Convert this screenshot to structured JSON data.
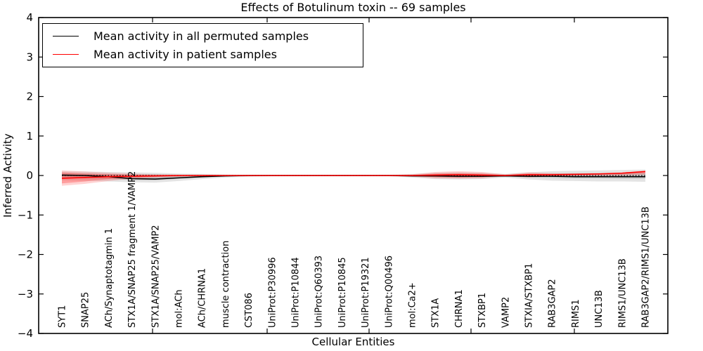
{
  "chart_data": {
    "type": "line",
    "title": "Effects of Botulinum toxin -- 69 samples",
    "xlabel": "Cellular Entities",
    "ylabel": "Inferred Activity",
    "ylim": [
      -4,
      4
    ],
    "ytick_values": [
      -4,
      -3,
      -2,
      -1,
      0,
      1,
      2,
      3,
      4
    ],
    "ytick_labels": [
      "−4",
      "−3",
      "−2",
      "−1",
      "0",
      "1",
      "2",
      "3",
      "4"
    ],
    "grid": false,
    "legend_position": "upper-left",
    "categories": [
      "SYT1",
      "SNAP25",
      "ACh/Synaptotagmin 1",
      "STX1A/SNAP25 fragment 1/VAMP2",
      "STX1A/SNAP25/VAMP2",
      "mol:ACh",
      "ACh/CHRNA1",
      "muscle contraction",
      "CST086",
      "UniProt:P30996",
      "UniProt:P10844",
      "UniProt:Q60393",
      "UniProt:P10845",
      "UniProt:P19321",
      "UniProt:Q00496",
      "mol:Ca2+",
      "STX1A",
      "CHRNA1",
      "STXBP1",
      "VAMP2",
      "STXIA/STXBP1",
      "RAB3GAP2",
      "RIMS1",
      "UNC13B",
      "RIMS1/UNC13B",
      "RAB3GAP2/RIMS1/UNC13B"
    ],
    "series": [
      {
        "name": "Mean activity in all permuted samples",
        "color": "#000000",
        "values": [
          0.01,
          0.0,
          -0.03,
          -0.08,
          -0.09,
          -0.06,
          -0.03,
          -0.01,
          0.0,
          0.0,
          0.0,
          0.0,
          0.0,
          0.0,
          0.0,
          -0.01,
          -0.01,
          -0.02,
          -0.02,
          -0.01,
          -0.02,
          -0.02,
          -0.03,
          -0.03,
          -0.03,
          -0.03
        ]
      },
      {
        "name": "Mean activity in patient samples",
        "color": "#ff0000",
        "values": [
          -0.07,
          -0.05,
          -0.03,
          -0.02,
          -0.01,
          0.0,
          0.0,
          0.0,
          0.0,
          0.0,
          0.0,
          0.0,
          0.0,
          0.0,
          0.0,
          0.0,
          0.01,
          0.02,
          0.01,
          0.0,
          0.02,
          0.02,
          0.03,
          0.04,
          0.06,
          0.1
        ]
      }
    ],
    "bands": [
      {
        "name": "permuted-spread-outer",
        "color": "rgba(130,130,130,0.22)",
        "upper": [
          0.1,
          0.1,
          0.09,
          0.08,
          0.07,
          0.05,
          0.04,
          0.03,
          0.02,
          0.02,
          0.02,
          0.02,
          0.02,
          0.02,
          0.02,
          0.04,
          0.07,
          0.08,
          0.07,
          0.04,
          0.08,
          0.11,
          0.12,
          0.13,
          0.14,
          0.15
        ],
        "lower": [
          -0.12,
          -0.13,
          -0.15,
          -0.17,
          -0.18,
          -0.14,
          -0.09,
          -0.05,
          -0.03,
          -0.02,
          -0.02,
          -0.02,
          -0.02,
          -0.02,
          -0.02,
          -0.05,
          -0.09,
          -0.1,
          -0.09,
          -0.05,
          -0.1,
          -0.13,
          -0.14,
          -0.15,
          -0.15,
          -0.16
        ]
      },
      {
        "name": "permuted-spread-inner",
        "color": "rgba(110,110,110,0.25)",
        "upper": [
          0.05,
          0.05,
          0.04,
          0.03,
          0.03,
          0.02,
          0.02,
          0.01,
          0.01,
          0.01,
          0.01,
          0.01,
          0.01,
          0.01,
          0.01,
          0.02,
          0.03,
          0.04,
          0.03,
          0.02,
          0.04,
          0.05,
          0.06,
          0.06,
          0.07,
          0.07
        ],
        "lower": [
          -0.06,
          -0.07,
          -0.09,
          -0.11,
          -0.12,
          -0.08,
          -0.05,
          -0.03,
          -0.02,
          -0.01,
          -0.01,
          -0.01,
          -0.01,
          -0.01,
          -0.01,
          -0.02,
          -0.04,
          -0.05,
          -0.04,
          -0.02,
          -0.05,
          -0.06,
          -0.07,
          -0.07,
          -0.08,
          -0.08
        ]
      },
      {
        "name": "patient-spread-outer",
        "color": "rgba(255,55,55,0.22)",
        "upper": [
          0.13,
          0.1,
          0.07,
          0.05,
          0.03,
          0.02,
          0.02,
          0.01,
          0.01,
          0.01,
          0.01,
          0.01,
          0.01,
          0.01,
          0.01,
          0.03,
          0.09,
          0.11,
          0.09,
          0.03,
          0.08,
          0.06,
          0.05,
          0.06,
          0.07,
          0.13
        ],
        "lower": [
          -0.26,
          -0.21,
          -0.14,
          -0.08,
          -0.05,
          -0.03,
          -0.02,
          -0.01,
          -0.01,
          -0.01,
          -0.01,
          -0.01,
          -0.01,
          -0.01,
          -0.01,
          -0.03,
          -0.07,
          -0.08,
          -0.07,
          -0.02,
          -0.05,
          -0.02,
          -0.01,
          -0.01,
          0.0,
          0.02
        ]
      },
      {
        "name": "patient-spread-inner",
        "color": "rgba(255,35,35,0.30)",
        "upper": [
          0.08,
          0.05,
          0.03,
          0.02,
          0.01,
          0.01,
          0.01,
          0.01,
          0.0,
          0.0,
          0.0,
          0.0,
          0.0,
          0.0,
          0.0,
          0.01,
          0.05,
          0.06,
          0.05,
          0.01,
          0.05,
          0.04,
          0.04,
          0.05,
          0.06,
          0.11
        ],
        "lower": [
          -0.2,
          -0.15,
          -0.09,
          -0.05,
          -0.03,
          -0.02,
          -0.01,
          -0.01,
          0.0,
          0.0,
          0.0,
          0.0,
          0.0,
          0.0,
          0.0,
          -0.01,
          -0.04,
          -0.05,
          -0.04,
          -0.01,
          -0.02,
          0.0,
          0.01,
          0.02,
          0.03,
          0.06
        ]
      }
    ],
    "zero_line": {
      "value": 0,
      "style": "dotted",
      "color": "#000000"
    }
  }
}
